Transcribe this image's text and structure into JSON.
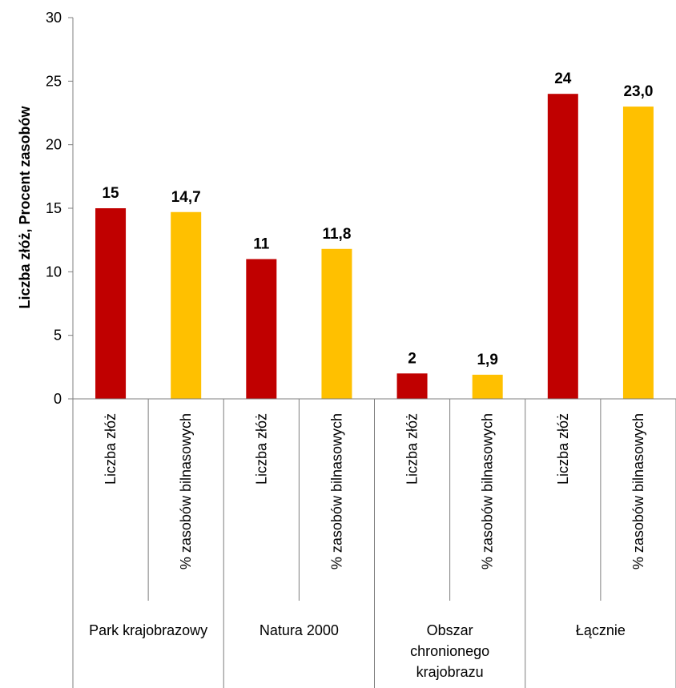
{
  "chart_data": {
    "type": "bar",
    "ylabel": "Liczba złóż, Procent zasobów",
    "ylim": [
      0,
      30
    ],
    "yticks": [
      0,
      5,
      10,
      15,
      20,
      25,
      30
    ],
    "groups": [
      "Park krajobrazowy",
      "Natura 2000",
      "Obszar chronionego krajobrazu",
      "Łącznie"
    ],
    "group_lines": [
      [
        "Park krajobrazowy"
      ],
      [
        "Natura 2000"
      ],
      [
        "Obszar",
        "chronionego",
        "krajobrazu"
      ],
      [
        "Łącznie"
      ]
    ],
    "categories": [
      "Liczba złóż",
      "% zasobów bilnasowych",
      "Liczba złóż",
      "% zasobów bilnasowych",
      "Liczba złóż",
      "% zasobów bilnasowych",
      "Liczba złóż",
      "% zasobów bilnasowych"
    ],
    "values": [
      15,
      14.7,
      11,
      11.8,
      2,
      1.9,
      24,
      23.0
    ],
    "data_labels": [
      "15",
      "14,7",
      "11",
      "11,8",
      "2",
      "1,9",
      "24",
      "23,0"
    ],
    "colors": [
      "#c00000",
      "#ffc000",
      "#c00000",
      "#ffc000",
      "#c00000",
      "#ffc000",
      "#c00000",
      "#ffc000"
    ],
    "grid": false
  }
}
